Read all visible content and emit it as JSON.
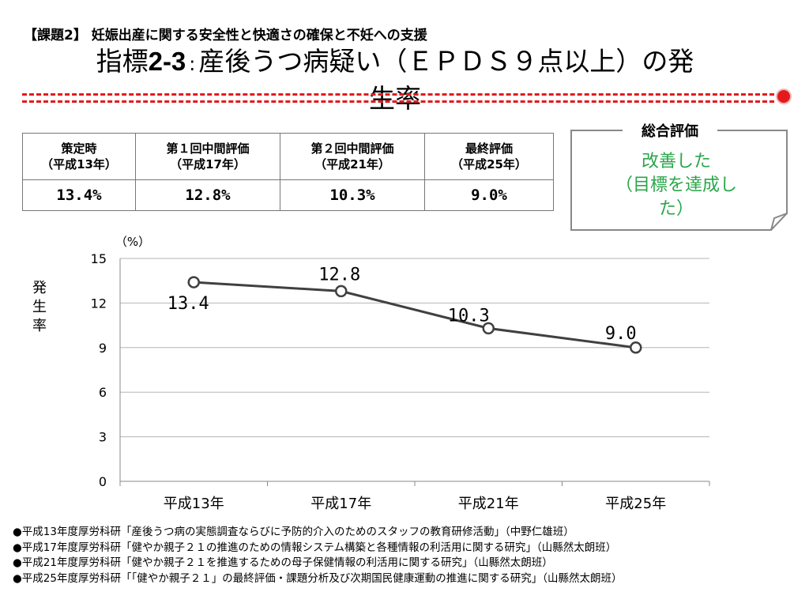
{
  "header": {
    "subtitle": "【課題2】 妊娠出産に関する安全性と快適さの確保と不妊への支援",
    "title_prefix": "指標",
    "title_code": "2-3",
    "title_sep": ":",
    "title_main": "産後うつ病疑い（ＥＰＤＳ９点以上）の発生率"
  },
  "summary_table": {
    "columns": [
      {
        "label": "策定時",
        "sub": "（平成13年）"
      },
      {
        "label": "第１回中間評価",
        "sub": "（平成17年）"
      },
      {
        "label": "第２回中間評価",
        "sub": "（平成21年）"
      },
      {
        "label": "最終評価",
        "sub": "（平成25年）"
      }
    ],
    "values": [
      "13.4%",
      "12.8%",
      "10.3%",
      "9.0%"
    ]
  },
  "evaluation": {
    "heading": "総合評価",
    "result": "改善した（目標を達成した）"
  },
  "colors": {
    "accent_red": "#e31a1c",
    "result_green": "#2aa64a",
    "series_line": "#404040"
  },
  "chart_data": {
    "type": "line",
    "categories": [
      "平成13年",
      "平成17年",
      "平成21年",
      "平成25年"
    ],
    "series": [
      {
        "values": [
          13.4,
          12.8,
          10.3,
          9.0
        ]
      }
    ],
    "data_labels": [
      "13.4",
      "12.8",
      "10.3",
      "9.0"
    ],
    "ylabel": "発生率",
    "unit": "（%）",
    "ylim": [
      0,
      15
    ],
    "yticks": [
      0,
      3,
      6,
      9,
      12,
      15
    ],
    "grid": true,
    "legend": false
  },
  "references": [
    "●平成13年度厚労科研「産後うつ病の実態調査ならびに予防的介入のためのスタッフの教育研修活動」（中野仁雄班）",
    "●平成17年度厚労科研「健やか親子２１の推進のための情報システム構築と各種情報の利活用に関する研究」（山縣然太朗班）",
    "●平成21年度厚労科研「健やか親子２１を推進するための母子保健情報の利活用に関する研究」（山縣然太朗班）",
    "●平成25年度厚労科研「「健やか親子２１」の最終評価・課題分析及び次期国民健康運動の推進に関する研究」（山縣然太朗班）"
  ]
}
